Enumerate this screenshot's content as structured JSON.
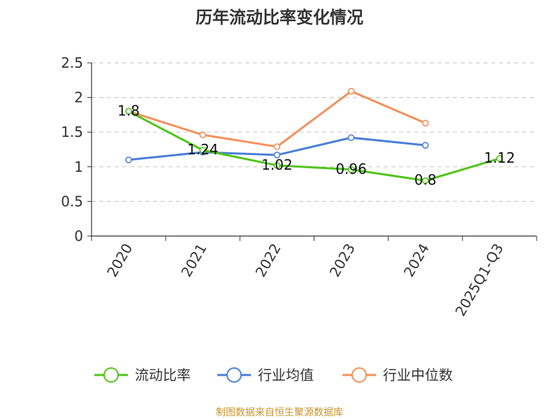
{
  "chart_data": {
    "type": "line",
    "title": "历年流动比率变化情况",
    "categories": [
      "2020",
      "2021",
      "2022",
      "2023",
      "2024",
      "2025Q1-Q3"
    ],
    "ylim": [
      0,
      2.5
    ],
    "yticks": [
      "0",
      "0.5",
      "1",
      "1.5",
      "2",
      "2.5"
    ],
    "grid": true,
    "legend_position": "bottom",
    "series": [
      {
        "name": "流动比率",
        "color": "#52c41a",
        "values": [
          1.8,
          1.24,
          1.02,
          0.96,
          0.8,
          1.12
        ],
        "labels": [
          "1.8",
          "1.24",
          "1.02",
          "0.96",
          "0.8",
          "1.12"
        ]
      },
      {
        "name": "行业均值",
        "color": "#4a7fd8",
        "values": [
          1.1,
          1.21,
          1.17,
          1.42,
          1.31,
          null
        ]
      },
      {
        "name": "行业中位数",
        "color": "#f4905a",
        "values": [
          1.8,
          1.46,
          1.29,
          2.09,
          1.63,
          null
        ]
      }
    ]
  },
  "footer": {
    "text": "制图数据来自恒生聚源数据库",
    "color": "#c8952e"
  }
}
